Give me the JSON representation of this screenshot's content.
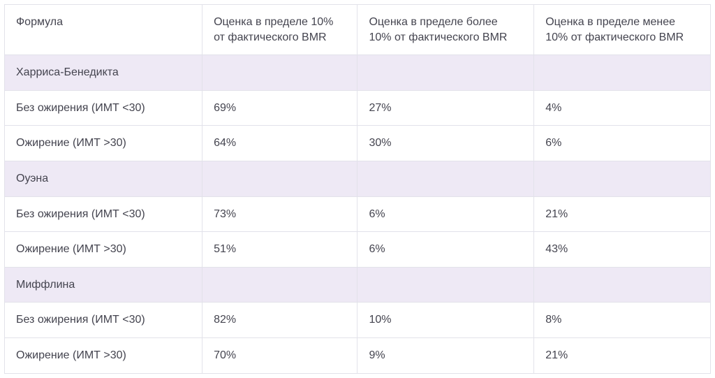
{
  "table": {
    "type": "table",
    "columns": [
      "Формула",
      "Оценка в пределе 10% от фактического BMR",
      "Оценка в пределе более 10% от фактического BMR",
      "Оценка в пределе менее 10% от фактического BMR"
    ],
    "column_widths_pct": [
      28,
      22,
      25,
      25
    ],
    "colors": {
      "border": "#e2e2ea",
      "text": "#44444f",
      "background": "#ffffff",
      "section_row_background": "#eee9f5"
    },
    "font": {
      "family": "Segoe UI",
      "size_pt": 12,
      "weight": 400
    },
    "rows": [
      {
        "type": "section",
        "cells": [
          "Харриса-Бенедикта",
          "",
          "",
          ""
        ]
      },
      {
        "type": "data",
        "cells": [
          "Без ожирения (ИМТ <30)",
          "69%",
          "27%",
          "4%"
        ]
      },
      {
        "type": "data",
        "cells": [
          "Ожирение (ИМТ >30)",
          "64%",
          "30%",
          "6%"
        ]
      },
      {
        "type": "section",
        "cells": [
          "Оуэна",
          "",
          "",
          ""
        ]
      },
      {
        "type": "data",
        "cells": [
          "Без ожирения (ИМТ <30)",
          "73%",
          "6%",
          "21%"
        ]
      },
      {
        "type": "data",
        "cells": [
          "Ожирение (ИМТ >30)",
          "51%",
          "6%",
          "43%"
        ]
      },
      {
        "type": "section",
        "cells": [
          "Миффлина",
          "",
          "",
          ""
        ]
      },
      {
        "type": "data",
        "cells": [
          "Без ожирения (ИМТ <30)",
          "82%",
          "10%",
          "8%"
        ]
      },
      {
        "type": "data",
        "cells": [
          "Ожирение (ИМТ >30)",
          "70%",
          "9%",
          "21%"
        ]
      }
    ]
  }
}
